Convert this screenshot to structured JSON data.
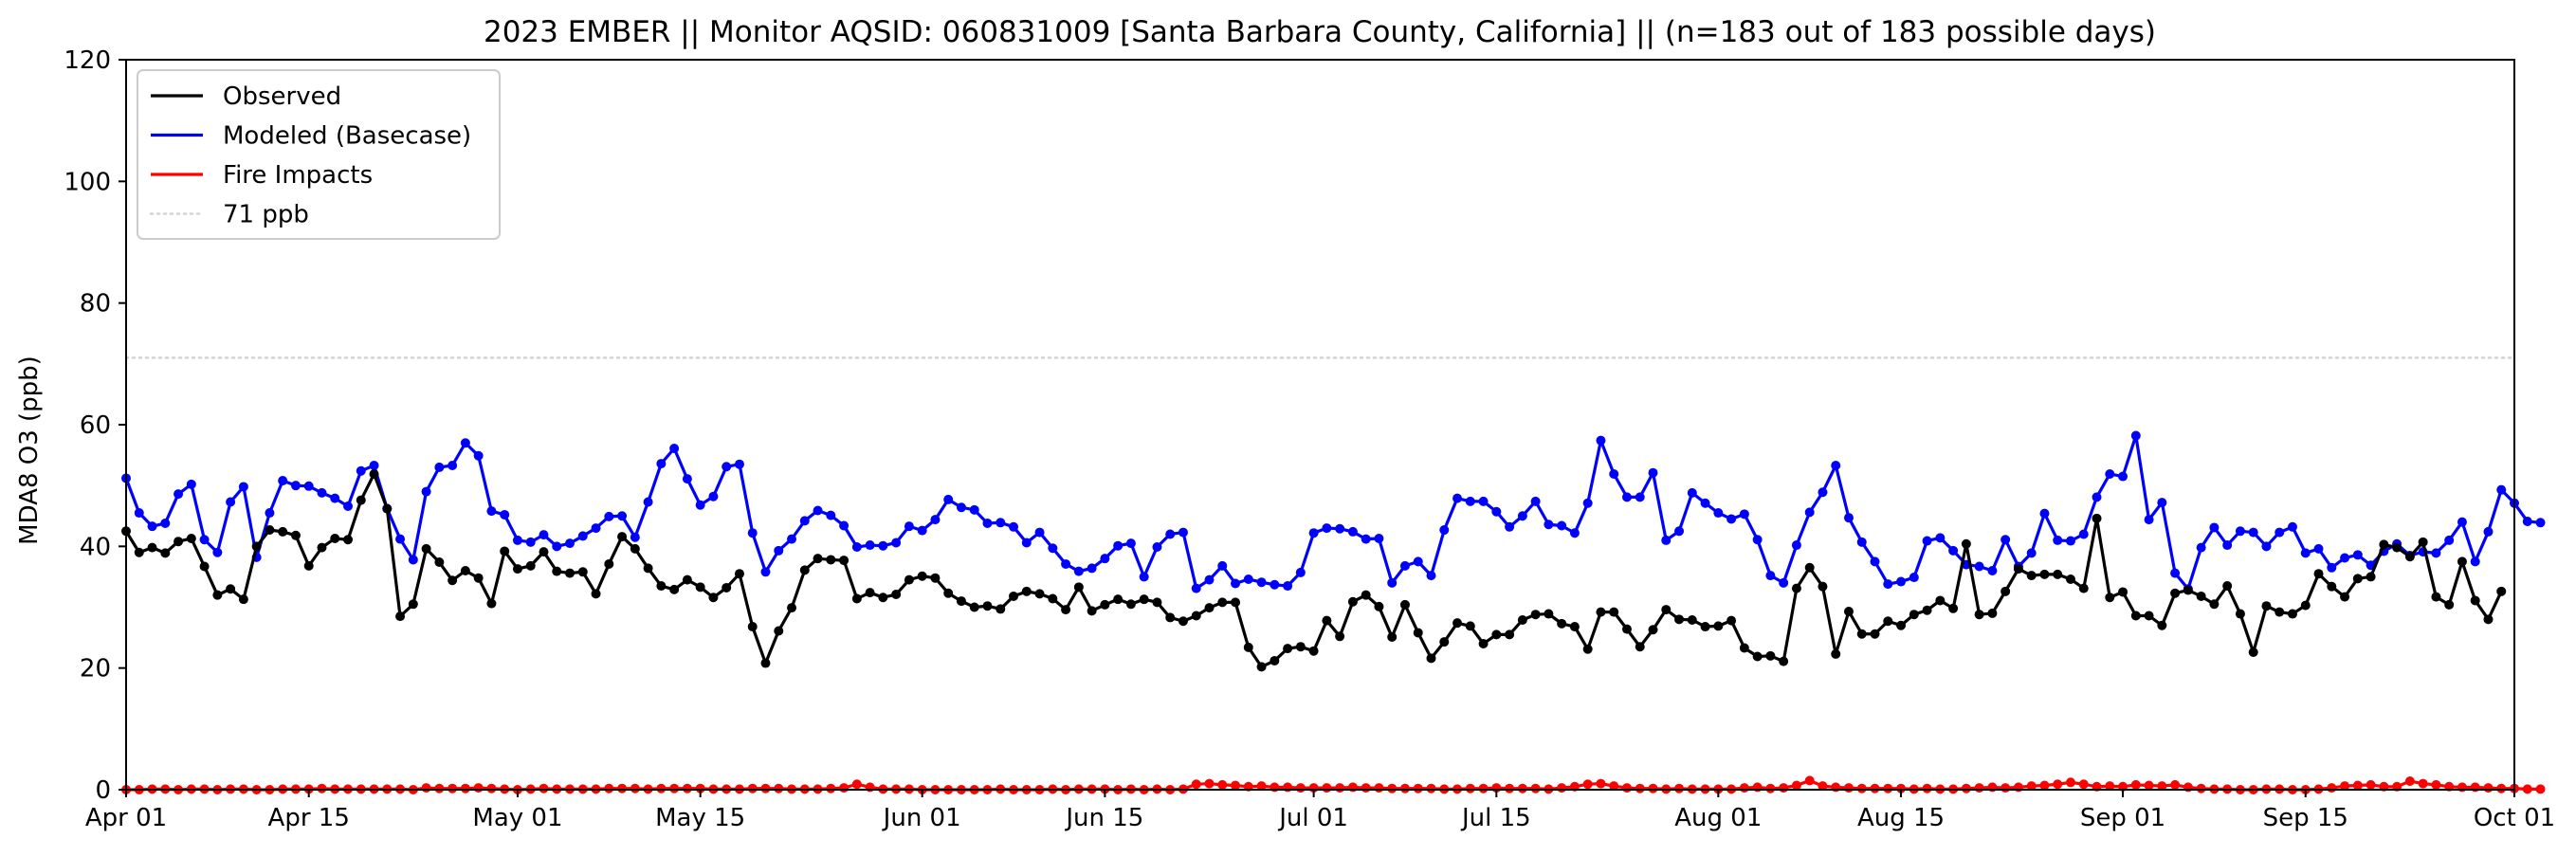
{
  "chart_data": {
    "type": "line",
    "title": "2023 EMBER || Monitor AQSID: 060831009 [Santa Barbara County, California] || (n=183 out of 183 possible days)",
    "xlabel": "",
    "ylabel": "MDA8 O3 (ppb)",
    "x_start": "2023-04-01",
    "x_end": "2023-10-01",
    "xlim": [
      "2023-04-01",
      "2023-10-01"
    ],
    "ylim": [
      0,
      120
    ],
    "x_ticks": [
      {
        "date": "2023-04-01",
        "label": "Apr 01"
      },
      {
        "date": "2023-04-15",
        "label": "Apr 15"
      },
      {
        "date": "2023-05-01",
        "label": "May 01"
      },
      {
        "date": "2023-05-15",
        "label": "May 15"
      },
      {
        "date": "2023-06-01",
        "label": "Jun 01"
      },
      {
        "date": "2023-06-15",
        "label": "Jun 15"
      },
      {
        "date": "2023-07-01",
        "label": "Jul 01"
      },
      {
        "date": "2023-07-15",
        "label": "Jul 15"
      },
      {
        "date": "2023-08-01",
        "label": "Aug 01"
      },
      {
        "date": "2023-08-15",
        "label": "Aug 15"
      },
      {
        "date": "2023-09-01",
        "label": "Sep 01"
      },
      {
        "date": "2023-09-15",
        "label": "Sep 15"
      },
      {
        "date": "2023-10-01",
        "label": "Oct 01"
      }
    ],
    "y_ticks": [
      0,
      20,
      40,
      60,
      80,
      100,
      120
    ],
    "y_tick_labels": [
      "0",
      "20",
      "40",
      "60",
      "80",
      "100",
      "120"
    ],
    "grid": false,
    "legend_position": "top-left",
    "reference_line": {
      "name": "71 ppb",
      "value": 71,
      "color": "#d3d3d3",
      "style": "dotted"
    },
    "series": [
      {
        "name": "Observed",
        "color": "#000000",
        "values": [
          42.5,
          39.0,
          39.8,
          38.9,
          40.8,
          41.3,
          36.7,
          32.0,
          33.0,
          31.3,
          40.0,
          42.7,
          42.4,
          41.8,
          36.8,
          39.8,
          41.3,
          41.1,
          47.6,
          51.9,
          46.2,
          28.5,
          30.5,
          39.6,
          37.4,
          34.4,
          36.0,
          34.8,
          30.6,
          39.2,
          36.3,
          36.8,
          39.1,
          35.9,
          35.6,
          35.8,
          32.2,
          37.1,
          41.6,
          39.6,
          36.4,
          33.5,
          32.9,
          34.5,
          33.3,
          31.6,
          33.2,
          35.5,
          26.8,
          20.8,
          26.1,
          29.9,
          36.1,
          38.0,
          37.8,
          37.7,
          31.4,
          32.4,
          31.6,
          32.1,
          34.5,
          35.1,
          34.8,
          32.3,
          31.0,
          30.0,
          30.2,
          29.7,
          31.8,
          32.6,
          32.2,
          31.4,
          29.6,
          33.3,
          29.4,
          30.4,
          31.3,
          30.5,
          31.3,
          30.8,
          28.3,
          27.7,
          28.6,
          29.9,
          30.8,
          30.8,
          23.4,
          20.2,
          21.2,
          23.2,
          23.5,
          22.8,
          27.8,
          25.2,
          30.9,
          32.0,
          30.1,
          25.1,
          30.4,
          25.8,
          21.6,
          24.3,
          27.4,
          26.9,
          24.0,
          25.5,
          25.5,
          27.9,
          28.8,
          28.9,
          27.3,
          26.8,
          23.1,
          29.2,
          29.2,
          26.4,
          23.5,
          26.3,
          29.6,
          28.0,
          27.9,
          26.8,
          26.9,
          27.8,
          23.3,
          21.9,
          22.0,
          21.1,
          33.1,
          36.5,
          33.4,
          22.3,
          29.3,
          25.6,
          25.6,
          27.7,
          27.0,
          28.8,
          29.5,
          31.1,
          29.8,
          40.4,
          28.8,
          29.0,
          32.6,
          36.3,
          35.2,
          35.4,
          35.4,
          34.6,
          33.1,
          44.6,
          31.6,
          32.5,
          28.6,
          28.6,
          27.0,
          32.3,
          32.8,
          31.8,
          30.5,
          33.5,
          28.9,
          22.6,
          30.2,
          29.2,
          28.9,
          30.3,
          35.5,
          33.4,
          31.7,
          34.7,
          35.0,
          40.3,
          39.8,
          38.3,
          40.7,
          31.7,
          30.4,
          37.5,
          31.1,
          28.0,
          32.6
        ]
      },
      {
        "name": "Modeled (Basecase)",
        "color": "#0000ff",
        "values": [
          51.2,
          45.5,
          43.3,
          43.8,
          48.6,
          50.2,
          41.1,
          39.0,
          47.3,
          49.8,
          38.2,
          45.5,
          50.8,
          50.0,
          49.9,
          48.8,
          47.9,
          46.6,
          52.4,
          53.3,
          46.2,
          41.2,
          37.8,
          49.0,
          53.0,
          53.3,
          57.0,
          54.9,
          45.8,
          45.2,
          41.0,
          40.7,
          41.9,
          40.0,
          40.5,
          41.7,
          43.0,
          44.9,
          45.0,
          41.5,
          47.3,
          53.6,
          56.1,
          51.1,
          46.8,
          48.2,
          53.1,
          53.5,
          42.2,
          35.8,
          39.3,
          41.2,
          44.2,
          45.9,
          45.1,
          43.4,
          39.9,
          40.2,
          40.1,
          40.6,
          43.3,
          42.6,
          44.4,
          47.7,
          46.4,
          46.0,
          43.8,
          43.9,
          43.2,
          40.6,
          42.3,
          39.7,
          37.1,
          35.9,
          36.4,
          38.0,
          40.1,
          40.5,
          35.0,
          39.9,
          42.0,
          42.3,
          33.1,
          34.5,
          36.8,
          33.9,
          34.6,
          34.1,
          33.7,
          33.5,
          35.7,
          42.2,
          43.0,
          42.9,
          42.4,
          41.2,
          41.3,
          34.0,
          36.8,
          37.5,
          35.2,
          42.7,
          47.9,
          47.4,
          47.4,
          45.7,
          43.2,
          45.0,
          47.4,
          43.6,
          43.4,
          42.2,
          47.1,
          57.4,
          51.9,
          48.1,
          48.1,
          52.1,
          41.0,
          42.5,
          48.8,
          47.1,
          45.5,
          44.5,
          45.3,
          41.1,
          35.2,
          34.0,
          40.2,
          45.6,
          48.9,
          53.3,
          44.7,
          40.7,
          37.5,
          33.8,
          34.2,
          34.9,
          40.9,
          41.4,
          39.3,
          37.0,
          36.7,
          36.0,
          41.1,
          36.7,
          38.9,
          45.4,
          41.0,
          40.9,
          42.0,
          48.1,
          51.9,
          51.5,
          58.2,
          44.4,
          47.2,
          35.6,
          33.0,
          39.8,
          43.1,
          40.2,
          42.5,
          42.3,
          40.0,
          42.3,
          43.2,
          38.9,
          39.6,
          36.5,
          38.1,
          38.6,
          36.9,
          39.2,
          40.4,
          38.5,
          39.1,
          38.9,
          41.0,
          44.0,
          37.5,
          42.4,
          49.3,
          47.1,
          44.1,
          43.9
        ]
      },
      {
        "name": "Fire Impacts",
        "color": "#ff0000",
        "values": [
          0.0,
          0.0,
          0.1,
          0.1,
          0.0,
          0.1,
          0.1,
          0.0,
          0.1,
          0.1,
          0.0,
          0.0,
          0.1,
          0.1,
          0.1,
          0.2,
          0.1,
          0.1,
          0.1,
          0.1,
          0.1,
          0.1,
          0.0,
          0.3,
          0.2,
          0.2,
          0.2,
          0.3,
          0.2,
          0.1,
          0.0,
          0.1,
          0.2,
          0.1,
          0.1,
          0.1,
          0.1,
          0.2,
          0.2,
          0.2,
          0.1,
          0.2,
          0.2,
          0.2,
          0.2,
          0.1,
          0.1,
          0.1,
          0.2,
          0.2,
          0.2,
          0.1,
          0.1,
          0.1,
          0.2,
          0.3,
          0.9,
          0.4,
          0.1,
          0.1,
          0.1,
          0.0,
          0.0,
          0.0,
          0.0,
          0.0,
          0.0,
          0.1,
          0.0,
          0.0,
          0.0,
          0.1,
          0.0,
          0.1,
          0.1,
          0.1,
          0.0,
          0.1,
          0.0,
          0.1,
          0.0,
          0.1,
          0.9,
          1.0,
          0.8,
          0.7,
          0.5,
          0.6,
          0.4,
          0.4,
          0.3,
          0.3,
          0.3,
          0.3,
          0.4,
          0.3,
          0.3,
          0.2,
          0.2,
          0.2,
          0.2,
          0.1,
          0.1,
          0.2,
          0.2,
          0.3,
          0.2,
          0.2,
          0.2,
          0.1,
          0.3,
          0.5,
          0.9,
          1.0,
          0.6,
          0.3,
          0.2,
          0.2,
          0.1,
          0.2,
          0.1,
          0.1,
          0.1,
          0.1,
          0.3,
          0.4,
          0.2,
          0.3,
          0.7,
          1.5,
          0.6,
          0.4,
          0.3,
          0.2,
          0.2,
          0.2,
          0.2,
          0.1,
          0.2,
          0.1,
          0.1,
          0.2,
          0.3,
          0.4,
          0.3,
          0.4,
          0.6,
          0.7,
          0.9,
          1.2,
          0.9,
          0.5,
          0.6,
          0.5,
          0.8,
          0.7,
          0.6,
          0.8,
          0.4,
          0.2,
          0.1,
          0.1,
          0.0,
          0.0,
          0.1,
          0.1,
          0.0,
          0.0,
          0.1,
          0.3,
          0.6,
          0.7,
          0.8,
          0.5,
          0.5,
          1.4,
          1.0,
          0.8,
          0.5,
          0.4,
          0.4,
          0.3,
          0.2,
          0.2,
          0.1,
          0.1
        ]
      }
    ]
  }
}
